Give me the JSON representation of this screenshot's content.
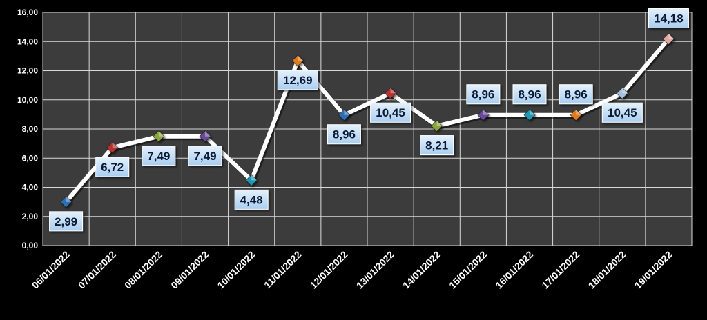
{
  "chart_data": {
    "type": "line",
    "categories": [
      "06/01/2022",
      "07/01/2022",
      "08/01/2022",
      "09/01/2022",
      "10/01/2022",
      "11/01/2022",
      "12/01/2022",
      "13/01/2022",
      "14/01/2022",
      "15/01/2022",
      "16/01/2022",
      "17/01/2022",
      "18/01/2022",
      "19/01/2022"
    ],
    "series": [
      {
        "values": [
          2.99,
          6.72,
          7.49,
          7.49,
          4.48,
          12.69,
          8.96,
          10.45,
          8.21,
          8.96,
          8.96,
          8.96,
          10.45,
          14.18
        ],
        "data_labels": [
          "2,99",
          "6,72",
          "7,49",
          "7,49",
          "4,48",
          "12,69",
          "8,96",
          "10,45",
          "8,21",
          "8,96",
          "8,96",
          "8,96",
          "10,45",
          "14,18"
        ],
        "label_side": [
          "below",
          "below",
          "below",
          "below",
          "below",
          "below",
          "below",
          "below",
          "below",
          "above",
          "above",
          "above",
          "below",
          "above"
        ],
        "marker_colors": [
          "#2e6eb5",
          "#b5302e",
          "#8aa63a",
          "#6a4a9a",
          "#1e9ab5",
          "#e07a1a",
          "#2e6eb5",
          "#b5302e",
          "#8aa63a",
          "#6a4a9a",
          "#1e9ab5",
          "#e07a1a",
          "#a9bfe0",
          "#e0a8a0"
        ]
      }
    ],
    "y_ticks": [
      "0,00",
      "2,00",
      "4,00",
      "6,00",
      "8,00",
      "10,00",
      "12,00",
      "14,00",
      "16,00"
    ],
    "ylim": [
      0,
      16
    ],
    "grid": true,
    "legend": "none",
    "colors": {
      "background": "#000000",
      "plot_area": "#3c3c3c",
      "gridline": "#d9d9d9",
      "line": "#ffffff",
      "label_box": "#bcd9f5",
      "label_text": "#0a1a33",
      "tick_text": "#ffffff"
    }
  }
}
